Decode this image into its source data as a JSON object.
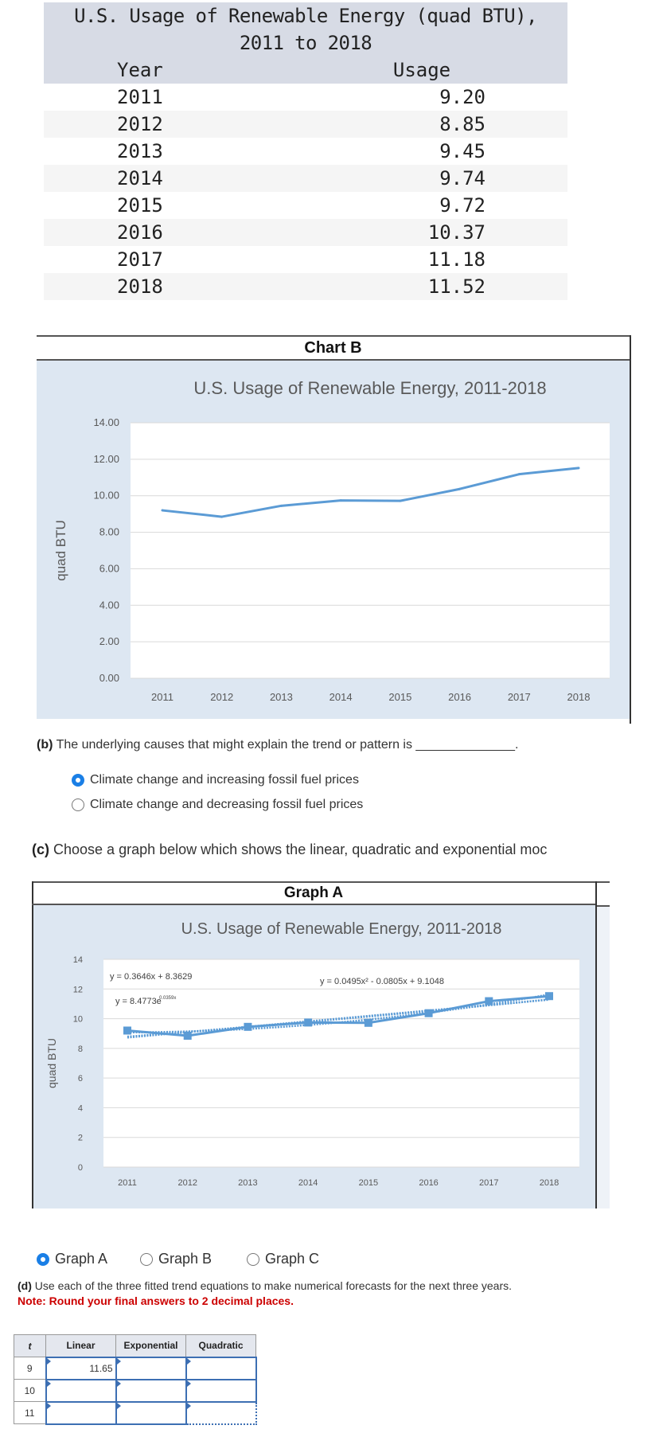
{
  "data_table": {
    "title": "U.S. Usage of Renewable Energy (quad BTU),",
    "subtitle": "2011 to 2018",
    "headers": [
      "Year",
      "Usage"
    ],
    "rows": [
      [
        "2011",
        "9.20"
      ],
      [
        "2012",
        "8.85"
      ],
      [
        "2013",
        "9.45"
      ],
      [
        "2014",
        "9.74"
      ],
      [
        "2015",
        "9.72"
      ],
      [
        "2016",
        "10.37"
      ],
      [
        "2017",
        "11.18"
      ],
      [
        "2018",
        "11.52"
      ]
    ]
  },
  "chart_b": {
    "label": "Chart B"
  },
  "graph_a": {
    "label": "Graph A"
  },
  "chart_data": [
    {
      "type": "line",
      "title": "U.S. Usage of Renewable Energy, 2011-2018",
      "xlabel": "",
      "ylabel": "quad BTU",
      "categories": [
        "2011",
        "2012",
        "2013",
        "2014",
        "2015",
        "2016",
        "2017",
        "2018"
      ],
      "values": [
        9.2,
        8.85,
        9.45,
        9.74,
        9.72,
        10.37,
        11.18,
        11.52
      ],
      "ylim": [
        0,
        14
      ],
      "yticks": [
        "0.00",
        "2.00",
        "4.00",
        "6.00",
        "8.00",
        "10.00",
        "12.00",
        "14.00"
      ],
      "grid": true,
      "color": "#5b9bd5"
    },
    {
      "type": "line",
      "title": "U.S. Usage of Renewable Energy, 2011-2018",
      "xlabel": "",
      "ylabel": "quad BTU",
      "categories": [
        "2011",
        "2012",
        "2013",
        "2014",
        "2015",
        "2016",
        "2017",
        "2018"
      ],
      "values": [
        9.2,
        8.85,
        9.45,
        9.74,
        9.72,
        10.37,
        11.18,
        11.52
      ],
      "ylim": [
        0,
        14
      ],
      "yticks": [
        "0",
        "2",
        "4",
        "6",
        "8",
        "10",
        "12",
        "14"
      ],
      "grid": true,
      "markers": "square",
      "color": "#5b9bd5",
      "trendlines": [
        {
          "type": "linear",
          "equation": "y = 0.3646x + 8.3629",
          "a": 0.3646,
          "b": 8.3629
        },
        {
          "type": "exponential",
          "equation": "y = 8.4773e",
          "exponent": "0.0359x",
          "a": 8.4773,
          "k": 0.0359
        },
        {
          "type": "quadratic",
          "equation": "y = 0.0495x² - 0.0805x + 9.1048",
          "a": 0.0495,
          "b": -0.0805,
          "c": 9.1048
        }
      ]
    }
  ],
  "question_b": {
    "label": "(b)",
    "text": "The underlying causes that might explain the trend or pattern is ______________.",
    "options": [
      {
        "label": "Climate change and increasing fossil fuel prices",
        "selected": true
      },
      {
        "label": "Climate change and decreasing fossil fuel prices",
        "selected": false
      }
    ]
  },
  "question_c": {
    "label": "(c)",
    "text": "Choose a graph below which shows the linear, quadratic and exponential moc",
    "options": [
      {
        "label": "Graph A",
        "selected": true
      },
      {
        "label": "Graph B",
        "selected": false
      },
      {
        "label": "Graph C",
        "selected": false
      }
    ]
  },
  "question_d": {
    "label": "(d)",
    "text": "Use each of the three fitted trend equations to make numerical forecasts for the next three years.",
    "note": "Note: Round your final answers to 2 decimal places.",
    "headers": [
      "t",
      "Linear",
      "Exponential",
      "Quadratic"
    ],
    "rows": [
      {
        "t": "9",
        "linear": "11.65",
        "exponential": "",
        "quadratic": ""
      },
      {
        "t": "10",
        "linear": "",
        "exponential": "",
        "quadratic": ""
      },
      {
        "t": "11",
        "linear": "",
        "exponential": "",
        "quadratic": ""
      }
    ]
  }
}
